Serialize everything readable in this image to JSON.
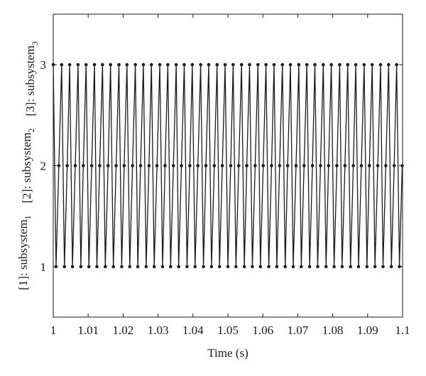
{
  "chart_data": {
    "type": "line",
    "title": "",
    "xlabel": "Time (s)",
    "ylabel": {
      "parts": [
        {
          "text": "[1]: subsystem",
          "sub": "1"
        },
        {
          "text": "[2]: subsystem",
          "sub": "2"
        },
        {
          "text": "[3]: subsystem",
          "sub": "3"
        }
      ]
    },
    "xlim": [
      1.0,
      1.1
    ],
    "ylim": [
      0.5,
      3.5
    ],
    "x_ticks": [
      1.0,
      1.01,
      1.02,
      1.03,
      1.04,
      1.05,
      1.06,
      1.07,
      1.08,
      1.09,
      1.1
    ],
    "x_tick_labels": [
      "1",
      "1.01",
      "1.02",
      "1.03",
      "1.04",
      "1.05",
      "1.06",
      "1.07",
      "1.08",
      "1.09",
      "1.1"
    ],
    "y_ticks": [
      1,
      2,
      3
    ],
    "y_tick_labels": [
      "1",
      "2",
      "3"
    ],
    "grid": false,
    "marker": "dot",
    "line_color": "#1a1a1a",
    "series": [
      {
        "x": [
          1.0,
          1.0008,
          1.0016,
          1.0024,
          1.0032,
          1.004,
          1.0047,
          1.0055,
          1.0063,
          1.0071,
          1.0079,
          1.0086,
          1.0094,
          1.0102,
          1.011,
          1.0118,
          1.0125,
          1.0133,
          1.0141,
          1.0149,
          1.0157,
          1.0164,
          1.0172,
          1.018,
          1.0188,
          1.0196,
          1.0203,
          1.0211,
          1.0219,
          1.0227,
          1.0235,
          1.0242,
          1.025,
          1.0258,
          1.0266,
          1.0274,
          1.0281,
          1.0289,
          1.0297,
          1.0305,
          1.0313,
          1.032,
          1.0328,
          1.0336,
          1.0344,
          1.0352,
          1.0359,
          1.0367,
          1.0375,
          1.0383,
          1.0391,
          1.0398,
          1.0406,
          1.0414,
          1.0422,
          1.043,
          1.0437,
          1.0445,
          1.0453,
          1.0461,
          1.0469,
          1.0476,
          1.0484,
          1.0492,
          1.05,
          1.0508,
          1.0515,
          1.0523,
          1.0531,
          1.0539,
          1.0547,
          1.0554,
          1.0562,
          1.057,
          1.0578,
          1.0586,
          1.0593,
          1.0601,
          1.0609,
          1.0617,
          1.0625,
          1.0632,
          1.064,
          1.0648,
          1.0656,
          1.0664,
          1.0671,
          1.0679,
          1.0687,
          1.0695,
          1.0703,
          1.071,
          1.0718,
          1.0726,
          1.0734,
          1.0742,
          1.0749,
          1.0757,
          1.0765,
          1.0773,
          1.0781,
          1.0788,
          1.0796,
          1.0804,
          1.0812,
          1.082,
          1.0827,
          1.0835,
          1.0843,
          1.0851,
          1.0859,
          1.0866,
          1.0874,
          1.0882,
          1.089,
          1.0898,
          1.0905,
          1.0913,
          1.0921,
          1.0929,
          1.0937,
          1.0944,
          1.0952,
          1.096,
          1.0968,
          1.0976,
          1.0983,
          1.0991,
          1.0999
        ],
        "y": [
          3,
          1,
          2,
          3,
          1,
          2,
          3,
          1,
          2,
          3,
          1,
          2,
          3,
          1,
          2,
          3,
          1,
          2,
          3,
          1,
          2,
          3,
          1,
          2,
          3,
          1,
          2,
          3,
          1,
          2,
          3,
          1,
          2,
          3,
          1,
          2,
          3,
          1,
          2,
          3,
          1,
          2,
          3,
          1,
          2,
          3,
          1,
          2,
          3,
          1,
          2,
          3,
          1,
          2,
          3,
          1,
          2,
          3,
          1,
          2,
          3,
          1,
          2,
          3,
          1,
          2,
          3,
          1,
          2,
          3,
          1,
          2,
          3,
          1,
          2,
          3,
          1,
          2,
          3,
          1,
          2,
          3,
          1,
          2,
          3,
          1,
          2,
          3,
          1,
          2,
          3,
          1,
          2,
          3,
          1,
          2,
          3,
          1,
          2,
          3,
          1,
          2,
          3,
          1,
          2,
          3,
          1,
          2,
          3,
          1,
          2,
          3,
          1,
          2,
          3,
          1,
          2,
          3,
          1,
          2,
          3,
          1,
          2,
          3,
          1,
          2,
          3,
          1,
          2
        ]
      }
    ]
  }
}
